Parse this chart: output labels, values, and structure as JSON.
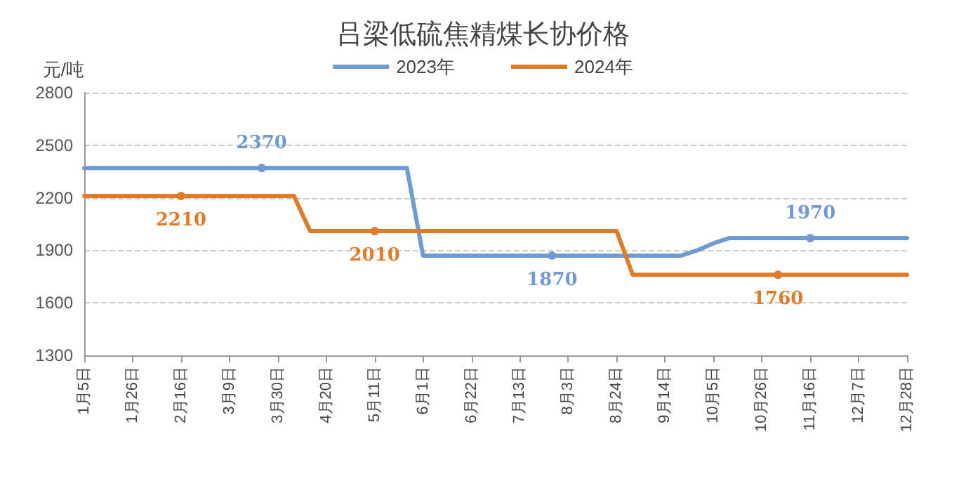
{
  "chart_data": {
    "type": "line",
    "title": "吕梁低硫焦精煤长协价格",
    "ylabel": "元/吨",
    "categories": [
      "1月5日",
      null,
      null,
      "1月26日",
      null,
      null,
      "2月16日",
      null,
      null,
      "3月9日",
      null,
      null,
      "3月30日",
      null,
      null,
      "4月20日",
      null,
      null,
      "5月11日",
      null,
      null,
      "6月1日",
      null,
      null,
      "6月22日",
      null,
      null,
      "7月13日",
      null,
      null,
      "8月3日",
      null,
      null,
      "8月24日",
      null,
      null,
      "9月14日",
      null,
      null,
      "10月5日",
      null,
      null,
      "10月26日",
      null,
      null,
      "11月16日",
      null,
      null,
      "12月7日",
      null,
      null,
      "12月28日"
    ],
    "series": [
      {
        "name": "2023年",
        "color": "#6f9bd1",
        "values": [
          2370,
          2370,
          2370,
          2370,
          2370,
          2370,
          2370,
          2370,
          2370,
          2370,
          2370,
          2370,
          2370,
          2370,
          2370,
          2370,
          2370,
          2370,
          2370,
          2370,
          2370,
          1870,
          1870,
          1870,
          1870,
          1870,
          1870,
          1870,
          1870,
          1870,
          1870,
          1870,
          1870,
          1870,
          1870,
          1870,
          1870,
          1870,
          1900,
          1940,
          1970,
          1970,
          1970,
          1970,
          1970,
          1970,
          1970,
          1970,
          1970,
          1970,
          1970,
          1970
        ],
        "value_labels": [
          null,
          null,
          null,
          null,
          null,
          null,
          null,
          null,
          null,
          null,
          null,
          "2370",
          null,
          null,
          null,
          null,
          null,
          null,
          null,
          null,
          null,
          null,
          null,
          null,
          null,
          null,
          null,
          null,
          null,
          "1870",
          null,
          null,
          null,
          null,
          null,
          null,
          null,
          null,
          null,
          null,
          null,
          null,
          null,
          null,
          null,
          "1970",
          null,
          null,
          null,
          null,
          null,
          null
        ]
      },
      {
        "name": "2024年",
        "color": "#e07b2a",
        "values": [
          2210,
          2210,
          2210,
          2210,
          2210,
          2210,
          2210,
          2210,
          2210,
          2210,
          2210,
          2210,
          2210,
          2210,
          2010,
          2010,
          2010,
          2010,
          2010,
          2010,
          2010,
          2010,
          2010,
          2010,
          2010,
          2010,
          2010,
          2010,
          2010,
          2010,
          2010,
          2010,
          2010,
          2010,
          1760,
          1760,
          1760,
          1760,
          1760,
          1760,
          1760,
          1760,
          1760,
          1760,
          1760,
          1760,
          1760,
          1760,
          1760,
          1760,
          1760,
          1760
        ],
        "value_labels": [
          null,
          null,
          null,
          null,
          null,
          null,
          "2210",
          null,
          null,
          null,
          null,
          null,
          null,
          null,
          null,
          null,
          null,
          null,
          "2010",
          null,
          null,
          null,
          null,
          null,
          null,
          null,
          null,
          null,
          null,
          null,
          null,
          null,
          null,
          null,
          null,
          null,
          null,
          null,
          null,
          null,
          null,
          null,
          null,
          "1760",
          null,
          null,
          null,
          null,
          null,
          null,
          null,
          null
        ]
      }
    ],
    "ylim": [
      1300,
      2800
    ],
    "yticks": [
      1300,
      1600,
      1900,
      2200,
      2500,
      2800
    ],
    "grid": "y",
    "legend": "top",
    "line_style": "solid"
  }
}
